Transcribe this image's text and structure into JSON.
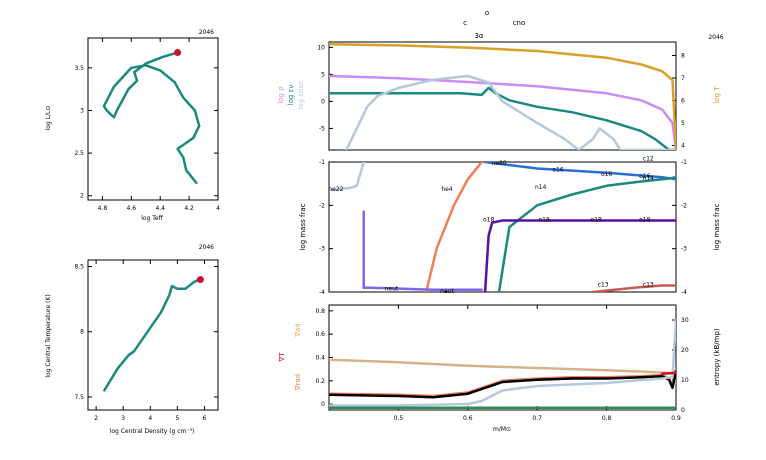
{
  "figure": {
    "model_number": "2046",
    "header": {
      "c": "c",
      "o": "o",
      "cno": "cno",
      "three_alpha": "3α"
    }
  },
  "colors": {
    "teal": "#1a8a80",
    "crimson": "#c8102e",
    "lilac": "#c98ef5",
    "gold": "#daa02b",
    "steel": "#b6c8dc",
    "orange": "#f47c54",
    "blue": "#2a6fd8",
    "purple": "#5b0fa0",
    "brick": "#c95a4f",
    "tan": "#d2b48c",
    "slate": "#7b8fc8",
    "violet": "#7b68ee",
    "green": "#2e8b57",
    "peach": "#f4a460",
    "black": "#000000"
  },
  "chart_data": [
    {
      "id": "hr",
      "type": "line",
      "title": "2046",
      "xlabel": "log Teff",
      "ylabel": "log L/L⊙",
      "xlim": [
        4.9,
        4.0
      ],
      "ylim": [
        1.95,
        3.85
      ],
      "xticks": [
        4.8,
        4.6,
        4.4,
        4.2,
        4.0
      ],
      "xtick_labels": [
        "4.8",
        "4.6",
        "4.4",
        "4.2",
        "4"
      ],
      "yticks": [
        2.0,
        2.5,
        3.0,
        3.5
      ],
      "ytick_labels": [
        "2",
        "2.5",
        "3",
        "3.5"
      ],
      "series": [
        {
          "color": "teal",
          "x": [
            4.15,
            4.22,
            4.24,
            4.28,
            4.22,
            4.17,
            4.13,
            4.16,
            4.24,
            4.3,
            4.4,
            4.5,
            4.6,
            4.72,
            4.79,
            4.77,
            4.74,
            4.72,
            4.7,
            4.62,
            4.56,
            4.58,
            4.5,
            4.38,
            4.28,
            4.28
          ],
          "y": [
            2.15,
            2.3,
            2.45,
            2.55,
            2.62,
            2.68,
            2.82,
            3.0,
            3.15,
            3.33,
            3.47,
            3.53,
            3.5,
            3.28,
            3.05,
            3.0,
            2.95,
            2.92,
            3.0,
            3.25,
            3.35,
            3.45,
            3.55,
            3.63,
            3.68,
            3.68
          ]
        }
      ],
      "marker": {
        "x": 4.28,
        "y": 3.68,
        "color": "crimson"
      }
    },
    {
      "id": "center",
      "type": "line",
      "title": "2046",
      "xlabel": "log Central Density (g cm⁻³)",
      "ylabel": "log Central Temperature (K)",
      "xlim": [
        1.7,
        6.5
      ],
      "ylim": [
        7.4,
        8.55
      ],
      "xticks": [
        2,
        3,
        4,
        5,
        6
      ],
      "xtick_labels": [
        "2",
        "3",
        "4",
        "5",
        "6"
      ],
      "yticks": [
        7.5,
        8.0,
        8.5
      ],
      "ytick_labels": [
        "7.5",
        "8",
        "8.5"
      ],
      "series": [
        {
          "color": "teal",
          "x": [
            2.3,
            2.8,
            3.2,
            3.4,
            3.9,
            4.4,
            4.7,
            4.8,
            5.0,
            5.3,
            5.6,
            5.8
          ],
          "y": [
            7.55,
            7.72,
            7.82,
            7.85,
            8.0,
            8.15,
            8.28,
            8.35,
            8.33,
            8.33,
            8.38,
            8.4
          ]
        }
      ],
      "marker": {
        "x": 5.85,
        "y": 8.4,
        "color": "crimson"
      }
    },
    {
      "id": "profile-top",
      "type": "line",
      "ylabel_left": [
        "log ρ",
        "log εν",
        "log εnuc"
      ],
      "ylabel_right": "log T",
      "xlim": [
        0.4,
        0.9
      ],
      "ylim": [
        -9,
        11
      ],
      "ylim_right": [
        3.8,
        8.6
      ],
      "yticks": [
        -5,
        0,
        5,
        10
      ],
      "ytick_labels": [
        "-5",
        "0",
        "5",
        "10"
      ],
      "yticks_right": [
        4,
        5,
        6,
        7,
        8
      ],
      "ytick_labels_right": [
        "4",
        "5",
        "6",
        "7",
        "8"
      ],
      "series": [
        {
          "name": "log ρ",
          "color": "lilac",
          "x": [
            0.4,
            0.5,
            0.6,
            0.7,
            0.8,
            0.85,
            0.88,
            0.895,
            0.9
          ],
          "y": [
            4.7,
            4.3,
            3.6,
            2.8,
            1.5,
            0.2,
            -1.5,
            -4,
            -9
          ]
        },
        {
          "name": "log T",
          "axis": "right",
          "color": "gold",
          "x": [
            0.4,
            0.5,
            0.6,
            0.7,
            0.8,
            0.85,
            0.88,
            0.895,
            0.9
          ],
          "y": [
            8.5,
            8.45,
            8.35,
            8.2,
            7.9,
            7.6,
            7.3,
            6.9,
            3.9
          ]
        },
        {
          "name": "log εν",
          "color": "teal",
          "x": [
            0.4,
            0.5,
            0.59,
            0.62,
            0.63,
            0.64,
            0.66,
            0.7,
            0.75,
            0.8,
            0.85,
            0.87,
            0.89,
            0.9
          ],
          "y": [
            1.5,
            1.5,
            1.5,
            1.2,
            2.5,
            1.5,
            0.2,
            -1,
            -2,
            -3.5,
            -5.5,
            -7,
            -9,
            -9
          ]
        },
        {
          "name": "log εnuc",
          "color": "steel",
          "x": [
            0.425,
            0.44,
            0.455,
            0.47,
            0.5,
            0.55,
            0.6,
            0.63,
            0.65,
            0.7,
            0.74,
            0.76,
            0.78,
            0.79,
            0.81,
            0.82,
            0.84,
            0.9
          ],
          "y": [
            -9,
            -5,
            -1,
            1,
            2.5,
            4,
            4.7,
            3.5,
            0,
            -4,
            -7,
            -9,
            -7,
            -5,
            -7,
            -9,
            -9,
            -9
          ]
        }
      ]
    },
    {
      "id": "abundance",
      "type": "line",
      "ylabel": "log mass frac",
      "ylabel_right": "log mass frac",
      "xlim": [
        0.4,
        0.9
      ],
      "ylim": [
        -4,
        -1
      ],
      "yticks": [
        -4,
        -3,
        -2,
        -1
      ],
      "ytick_labels": [
        "-4",
        "-3",
        "-2",
        "-1"
      ],
      "series": [
        {
          "color": "steel",
          "x": [
            0.4,
            0.43,
            0.44,
            0.45
          ],
          "y": [
            -1.65,
            -1.6,
            -1.55,
            -1.0
          ]
        },
        {
          "color": "orange",
          "x": [
            0.54,
            0.555,
            0.58,
            0.6,
            0.62
          ],
          "y": [
            -4,
            -3,
            -2,
            -1.4,
            -1.0
          ]
        },
        {
          "color": "blue",
          "x": [
            0.625,
            0.7,
            0.8,
            0.88,
            0.9
          ],
          "y": [
            -1.0,
            -1.15,
            -1.25,
            -1.35,
            -1.4
          ]
        },
        {
          "color": "teal",
          "x": [
            0.645,
            0.66,
            0.7,
            0.75,
            0.8,
            0.85,
            0.89,
            0.9
          ],
          "y": [
            -4,
            -2.5,
            -2.0,
            -1.75,
            -1.55,
            -1.45,
            -1.38,
            -1.35
          ]
        },
        {
          "color": "purple",
          "x": [
            0.625,
            0.63,
            0.635,
            0.65,
            0.9
          ],
          "y": [
            -4,
            -2.7,
            -2.4,
            -2.35,
            -2.35
          ]
        },
        {
          "color": "brick",
          "x": [
            0.78,
            0.84,
            0.88,
            0.9
          ],
          "y": [
            -4,
            -3.9,
            -3.85,
            -3.85
          ]
        },
        {
          "color": "violet",
          "x": [
            0.45,
            0.45,
            0.46,
            0.55,
            0.62
          ],
          "y": [
            -2.15,
            -3.9,
            -3.9,
            -3.95,
            -3.95
          ]
        },
        {
          "color": "peach",
          "x": [
            0.4,
            0.85,
            0.9
          ],
          "y": [
            -0.9,
            -0.95,
            -0.95
          ]
        }
      ],
      "labels": [
        {
          "text": "ne22",
          "x": 0.41,
          "y": -1.6,
          "color": "steel"
        },
        {
          "text": "he4",
          "x": 0.57,
          "y": -1.6,
          "color": "orange"
        },
        {
          "text": "ne20",
          "x": 0.645,
          "y": -1.0,
          "color": "steel"
        },
        {
          "text": "o16",
          "x": 0.73,
          "y": -1.15,
          "color": "blue"
        },
        {
          "text": "o16",
          "x": 0.8,
          "y": -1.25,
          "color": "blue"
        },
        {
          "text": "o16",
          "x": 0.855,
          "y": -1.3,
          "color": "blue"
        },
        {
          "text": "c12",
          "x": 0.86,
          "y": -0.9,
          "color": "peach"
        },
        {
          "text": "n14",
          "x": 0.705,
          "y": -1.55,
          "color": "teal"
        },
        {
          "text": "n14",
          "x": 0.86,
          "y": -1.35,
          "color": "teal"
        },
        {
          "text": "o18",
          "x": 0.63,
          "y": -2.3,
          "color": "purple"
        },
        {
          "text": "o18",
          "x": 0.71,
          "y": -2.3,
          "color": "purple"
        },
        {
          "text": "o18",
          "x": 0.785,
          "y": -2.3,
          "color": "purple"
        },
        {
          "text": "o18",
          "x": 0.855,
          "y": -2.3,
          "color": "purple"
        },
        {
          "text": "neut",
          "x": 0.49,
          "y": -3.9,
          "color": "slate"
        },
        {
          "text": "neut",
          "x": 0.57,
          "y": -3.95,
          "color": "slate"
        },
        {
          "text": "c13",
          "x": 0.795,
          "y": -3.8,
          "color": "brick"
        },
        {
          "text": "c13",
          "x": 0.86,
          "y": -3.8,
          "color": "brick"
        }
      ]
    },
    {
      "id": "gradients",
      "type": "line",
      "xlabel": "m/M⊙",
      "ylabel_left": [
        "∇ad",
        "∇T",
        "∇rad"
      ],
      "ylabel_right": "entropy (kB/mp)",
      "xlim": [
        0.4,
        0.9
      ],
      "ylim": [
        -0.05,
        0.85
      ],
      "ylim_right": [
        0,
        35
      ],
      "xticks": [
        0.5,
        0.6,
        0.7,
        0.8,
        0.9
      ],
      "xtick_labels": [
        "0.5",
        "0.6",
        "0.7",
        "0.8",
        "0.9"
      ],
      "yticks": [
        0,
        0.2,
        0.4,
        0.6,
        0.8
      ],
      "ytick_labels": [
        "0",
        "0.2",
        "0.4",
        "0.6",
        "0.8"
      ],
      "yticks_right": [
        0,
        10,
        20,
        30
      ],
      "ytick_labels_right": [
        "0",
        "10",
        "20",
        "30"
      ],
      "series": [
        {
          "name": "∇ad",
          "color": "tan",
          "x": [
            0.4,
            0.5,
            0.6,
            0.7,
            0.8,
            0.85,
            0.885,
            0.895,
            0.9
          ],
          "y": [
            0.38,
            0.36,
            0.33,
            0.31,
            0.29,
            0.28,
            0.27,
            0.26,
            0.18
          ]
        },
        {
          "name": "∇rad",
          "color": "orange",
          "x": [
            0.4,
            0.5,
            0.55,
            0.6,
            0.63,
            0.65,
            0.7,
            0.75,
            0.8,
            0.85,
            0.88,
            0.89,
            0.895,
            0.9
          ],
          "y": [
            0.09,
            0.08,
            0.07,
            0.1,
            0.16,
            0.2,
            0.22,
            0.23,
            0.23,
            0.24,
            0.25,
            0.22,
            0.15,
            0.3
          ]
        },
        {
          "name": "∇T",
          "color": "black",
          "x": [
            0.4,
            0.5,
            0.55,
            0.6,
            0.63,
            0.65,
            0.7,
            0.75,
            0.8,
            0.85,
            0.88,
            0.89,
            0.895,
            0.9
          ],
          "y": [
            0.08,
            0.07,
            0.06,
            0.09,
            0.15,
            0.19,
            0.21,
            0.22,
            0.22,
            0.23,
            0.24,
            0.21,
            0.14,
            0.28
          ]
        },
        {
          "name": "entropy",
          "axis": "right",
          "color": "steel",
          "x": [
            0.4,
            0.5,
            0.6,
            0.62,
            0.65,
            0.7,
            0.75,
            0.8,
            0.85,
            0.88,
            0.895,
            0.9
          ],
          "y": [
            1.5,
            1.5,
            2.0,
            3.0,
            6.5,
            8.0,
            8.5,
            9.0,
            10.0,
            10.5,
            11.0,
            30.0
          ]
        },
        {
          "name": "",
          "color": "green",
          "x": [
            0.4,
            0.9
          ],
          "y": [
            -0.03,
            -0.03
          ]
        },
        {
          "name": "",
          "color": "crimson",
          "x": [
            0.88,
            0.9
          ],
          "y": [
            0.26,
            0.27
          ]
        }
      ]
    }
  ]
}
